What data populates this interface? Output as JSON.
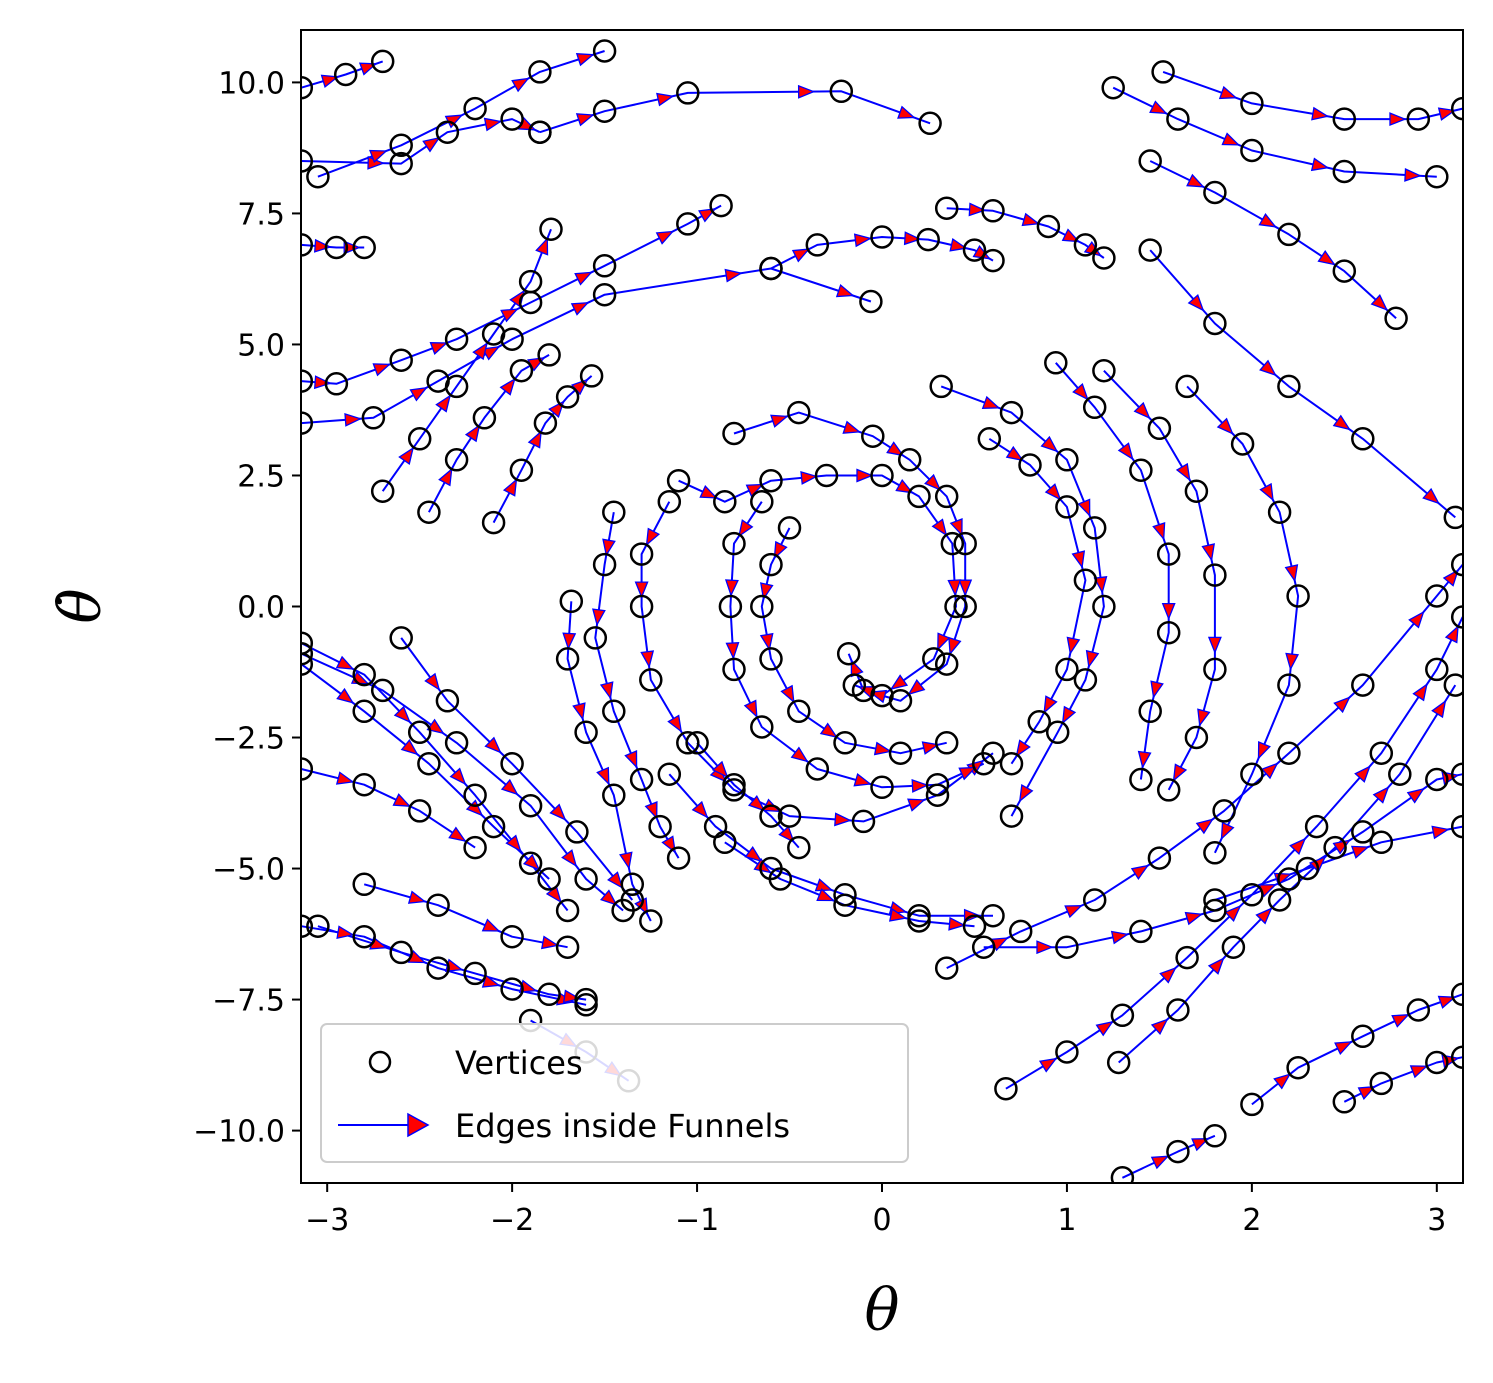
{
  "chart_data": {
    "type": "scatter",
    "title": "",
    "xlabel": "θ",
    "ylabel": "θ̇",
    "xlim": [
      -3.1416,
      3.1416
    ],
    "ylim": [
      -11.0,
      11.0
    ],
    "x_ticks": [
      -3,
      -2,
      -1,
      0,
      1,
      2,
      3
    ],
    "x_tick_labels": [
      "−3",
      "−2",
      "−1",
      "0",
      "1",
      "2",
      "3"
    ],
    "y_ticks": [
      10.0,
      7.5,
      5.0,
      2.5,
      0.0,
      -2.5,
      -5.0,
      -7.5,
      -10.0
    ],
    "y_tick_labels": [
      "10.0",
      "7.5",
      "5.0",
      "2.5",
      "0.0",
      "−2.5",
      "−5.0",
      "−7.5",
      "−10.0"
    ],
    "grid": false,
    "legend_position": "lower-left",
    "colors": {
      "vertices": "#000000",
      "edges": "#0000ff",
      "arrow_fill": "#ff0000"
    },
    "series": [
      {
        "name": "Vertices",
        "marker": "open-circle"
      },
      {
        "name": "Edges inside Funnels",
        "marker": "line-with-arrow"
      }
    ],
    "trajectories": [
      [
        [
          -3.14,
          9.9
        ],
        [
          -2.9,
          10.15
        ],
        [
          -2.7,
          10.4
        ]
      ],
      [
        [
          -3.14,
          8.5
        ],
        [
          -2.6,
          8.45
        ],
        [
          -2.35,
          9.05
        ],
        [
          -2.0,
          9.3
        ],
        [
          -1.85,
          9.05
        ]
      ],
      [
        [
          -3.05,
          8.2
        ],
        [
          -2.6,
          8.8
        ],
        [
          -2.2,
          9.5
        ],
        [
          -1.85,
          10.2
        ],
        [
          -1.5,
          10.6
        ]
      ],
      [
        [
          -1.85,
          9.05
        ],
        [
          -1.5,
          9.45
        ],
        [
          -1.05,
          9.8
        ],
        [
          -0.22,
          9.83
        ],
        [
          0.26,
          9.22
        ]
      ],
      [
        [
          -3.14,
          6.9
        ],
        [
          -2.95,
          6.85
        ],
        [
          -2.8,
          6.85
        ]
      ],
      [
        [
          -3.14,
          4.3
        ],
        [
          -2.95,
          4.25
        ],
        [
          -2.6,
          4.7
        ],
        [
          -2.3,
          5.1
        ],
        [
          -1.9,
          5.8
        ],
        [
          -1.5,
          6.5
        ],
        [
          -1.05,
          7.3
        ],
        [
          -0.87,
          7.65
        ]
      ],
      [
        [
          -3.14,
          3.5
        ],
        [
          -2.75,
          3.6
        ],
        [
          -2.4,
          4.3
        ],
        [
          -2.0,
          5.1
        ],
        [
          -1.5,
          5.95
        ],
        [
          -0.6,
          6.45
        ],
        [
          -0.06,
          5.82
        ]
      ],
      [
        [
          -2.7,
          2.2
        ],
        [
          -2.5,
          3.2
        ],
        [
          -2.3,
          4.2
        ],
        [
          -2.1,
          5.2
        ],
        [
          -1.9,
          6.2
        ],
        [
          -1.79,
          7.2
        ]
      ],
      [
        [
          -2.45,
          1.8
        ],
        [
          -2.3,
          2.8
        ],
        [
          -2.15,
          3.6
        ],
        [
          -1.95,
          4.5
        ],
        [
          -1.8,
          4.8
        ]
      ],
      [
        [
          -2.1,
          1.6
        ],
        [
          -1.95,
          2.6
        ],
        [
          -1.82,
          3.5
        ],
        [
          -1.7,
          4.0
        ],
        [
          -1.57,
          4.4
        ]
      ],
      [
        [
          -0.6,
          6.45
        ],
        [
          -0.35,
          6.9
        ],
        [
          0.0,
          7.05
        ],
        [
          0.25,
          7.0
        ],
        [
          0.5,
          6.8
        ],
        [
          0.6,
          6.6
        ]
      ],
      [
        [
          0.35,
          7.6
        ],
        [
          0.6,
          7.55
        ],
        [
          0.9,
          7.25
        ],
        [
          1.1,
          6.9
        ],
        [
          1.2,
          6.65
        ]
      ],
      [
        [
          1.25,
          9.9
        ],
        [
          1.6,
          9.3
        ],
        [
          2.0,
          8.7
        ],
        [
          2.5,
          8.3
        ],
        [
          3.0,
          8.2
        ]
      ],
      [
        [
          1.52,
          10.2
        ],
        [
          2.0,
          9.6
        ],
        [
          2.5,
          9.3
        ],
        [
          2.9,
          9.3
        ],
        [
          3.14,
          9.5
        ]
      ],
      [
        [
          1.45,
          8.5
        ],
        [
          1.8,
          7.9
        ],
        [
          2.2,
          7.1
        ],
        [
          2.5,
          6.4
        ],
        [
          2.78,
          5.5
        ]
      ],
      [
        [
          1.45,
          6.8
        ],
        [
          1.8,
          5.4
        ],
        [
          2.2,
          4.2
        ],
        [
          2.6,
          3.2
        ],
        [
          3.1,
          1.7
        ]
      ],
      [
        [
          -0.8,
          3.3
        ],
        [
          -0.45,
          3.7
        ],
        [
          -0.05,
          3.25
        ],
        [
          0.15,
          2.8
        ],
        [
          0.35,
          2.1
        ],
        [
          0.45,
          1.2
        ],
        [
          0.45,
          0.0
        ],
        [
          0.35,
          -1.1
        ],
        [
          0.1,
          -1.8
        ],
        [
          -0.1,
          -1.6
        ],
        [
          -0.18,
          -0.9
        ]
      ],
      [
        [
          -1.1,
          2.4
        ],
        [
          -0.85,
          2.0
        ],
        [
          -0.6,
          2.4
        ],
        [
          -0.3,
          2.5
        ],
        [
          0.0,
          2.5
        ],
        [
          0.2,
          2.1
        ],
        [
          0.38,
          1.2
        ],
        [
          0.4,
          0.0
        ],
        [
          0.28,
          -1.0
        ],
        [
          0.0,
          -1.7
        ],
        [
          -0.15,
          -1.5
        ]
      ],
      [
        [
          -1.15,
          2.0
        ],
        [
          -1.3,
          1.0
        ],
        [
          -1.3,
          0.0
        ],
        [
          -1.25,
          -1.4
        ],
        [
          -1.05,
          -2.6
        ],
        [
          -0.8,
          -3.5
        ],
        [
          -0.5,
          -4.0
        ],
        [
          -0.1,
          -4.1
        ],
        [
          0.3,
          -3.6
        ],
        [
          0.6,
          -2.8
        ]
      ],
      [
        [
          -0.65,
          2.0
        ],
        [
          -0.8,
          1.2
        ],
        [
          -0.82,
          0.0
        ],
        [
          -0.8,
          -1.2
        ],
        [
          -0.65,
          -2.3
        ],
        [
          -0.35,
          -3.1
        ],
        [
          0.0,
          -3.45
        ],
        [
          0.3,
          -3.4
        ],
        [
          0.55,
          -3.0
        ]
      ],
      [
        [
          -0.5,
          1.5
        ],
        [
          -0.6,
          0.8
        ],
        [
          -0.65,
          0.0
        ],
        [
          -0.6,
          -1.0
        ],
        [
          -0.45,
          -2.0
        ],
        [
          -0.2,
          -2.6
        ],
        [
          0.1,
          -2.8
        ],
        [
          0.35,
          -2.6
        ]
      ],
      [
        [
          -1.45,
          1.8
        ],
        [
          -1.5,
          0.8
        ],
        [
          -1.55,
          -0.6
        ],
        [
          -1.45,
          -2.0
        ],
        [
          -1.3,
          -3.3
        ],
        [
          -1.2,
          -4.2
        ],
        [
          -1.1,
          -4.8
        ]
      ],
      [
        [
          -1.68,
          0.1
        ],
        [
          -1.7,
          -1.0
        ],
        [
          -1.6,
          -2.4
        ],
        [
          -1.45,
          -3.6
        ],
        [
          -1.35,
          -5.3
        ],
        [
          -1.25,
          -6.0
        ]
      ],
      [
        [
          -1.0,
          -2.6
        ],
        [
          -0.8,
          -3.4
        ],
        [
          -0.6,
          -4.0
        ],
        [
          -0.45,
          -4.6
        ]
      ],
      [
        [
          -1.15,
          -3.2
        ],
        [
          -0.9,
          -4.2
        ],
        [
          -0.6,
          -5.0
        ],
        [
          -0.2,
          -5.5
        ],
        [
          0.2,
          -5.9
        ],
        [
          0.6,
          -5.9
        ]
      ],
      [
        [
          -0.85,
          -4.5
        ],
        [
          -0.55,
          -5.2
        ],
        [
          -0.2,
          -5.7
        ],
        [
          0.2,
          -6.0
        ],
        [
          0.5,
          -6.1
        ]
      ],
      [
        [
          0.58,
          3.2
        ],
        [
          0.8,
          2.7
        ],
        [
          1.0,
          1.9
        ],
        [
          1.1,
          0.5
        ],
        [
          1.0,
          -1.2
        ],
        [
          0.85,
          -2.2
        ],
        [
          0.7,
          -3.0
        ]
      ],
      [
        [
          0.32,
          4.2
        ],
        [
          0.7,
          3.7
        ],
        [
          1.0,
          2.8
        ],
        [
          1.15,
          1.5
        ],
        [
          1.2,
          0.0
        ],
        [
          1.1,
          -1.4
        ],
        [
          0.95,
          -2.4
        ],
        [
          0.7,
          -4.0
        ]
      ],
      [
        [
          0.94,
          4.65
        ],
        [
          1.15,
          3.8
        ],
        [
          1.4,
          2.6
        ],
        [
          1.55,
          1.0
        ],
        [
          1.55,
          -0.5
        ],
        [
          1.45,
          -2.0
        ],
        [
          1.4,
          -3.3
        ]
      ],
      [
        [
          1.2,
          4.5
        ],
        [
          1.5,
          3.4
        ],
        [
          1.7,
          2.2
        ],
        [
          1.8,
          0.6
        ],
        [
          1.8,
          -1.2
        ],
        [
          1.7,
          -2.5
        ],
        [
          1.55,
          -3.5
        ]
      ],
      [
        [
          1.65,
          4.2
        ],
        [
          1.95,
          3.1
        ],
        [
          2.15,
          1.8
        ],
        [
          2.25,
          0.2
        ],
        [
          2.2,
          -1.5
        ],
        [
          2.0,
          -3.2
        ],
        [
          1.8,
          -4.7
        ]
      ],
      [
        [
          0.35,
          -6.9
        ],
        [
          0.75,
          -6.2
        ],
        [
          1.15,
          -5.6
        ],
        [
          1.5,
          -4.8
        ],
        [
          1.85,
          -3.9
        ],
        [
          2.2,
          -2.8
        ],
        [
          2.6,
          -1.5
        ],
        [
          3.0,
          0.2
        ],
        [
          3.14,
          0.8
        ]
      ],
      [
        [
          0.55,
          -6.5
        ],
        [
          1.0,
          -6.5
        ],
        [
          1.4,
          -6.2
        ],
        [
          1.8,
          -5.8
        ],
        [
          2.2,
          -5.2
        ],
        [
          2.6,
          -4.3
        ],
        [
          3.0,
          -3.3
        ],
        [
          3.14,
          -3.2
        ]
      ],
      [
        [
          0.67,
          -9.2
        ],
        [
          1.0,
          -8.5
        ],
        [
          1.3,
          -7.8
        ],
        [
          1.65,
          -6.7
        ],
        [
          2.0,
          -5.5
        ],
        [
          2.35,
          -4.2
        ],
        [
          2.7,
          -2.8
        ],
        [
          3.0,
          -1.2
        ],
        [
          3.14,
          -0.2
        ]
      ],
      [
        [
          1.28,
          -8.7
        ],
        [
          1.6,
          -7.7
        ],
        [
          1.9,
          -6.5
        ],
        [
          2.15,
          -5.6
        ],
        [
          2.45,
          -4.6
        ],
        [
          2.8,
          -3.2
        ],
        [
          3.1,
          -1.5
        ]
      ],
      [
        [
          2.0,
          -9.5
        ],
        [
          2.25,
          -8.8
        ],
        [
          2.6,
          -8.2
        ],
        [
          2.9,
          -7.7
        ],
        [
          3.14,
          -7.4
        ]
      ],
      [
        [
          2.5,
          -9.45
        ],
        [
          2.7,
          -9.1
        ],
        [
          3.0,
          -8.7
        ],
        [
          3.14,
          -8.6
        ]
      ],
      [
        [
          1.3,
          -10.9
        ],
        [
          1.6,
          -10.4
        ],
        [
          1.8,
          -10.1
        ]
      ],
      [
        [
          1.8,
          -5.6
        ],
        [
          2.3,
          -5.0
        ],
        [
          2.7,
          -4.5
        ],
        [
          3.14,
          -4.2
        ]
      ],
      [
        [
          -3.14,
          -0.7
        ],
        [
          -2.8,
          -1.3
        ],
        [
          -2.5,
          -2.4
        ],
        [
          -2.2,
          -3.6
        ],
        [
          -1.9,
          -4.9
        ],
        [
          -1.7,
          -5.8
        ]
      ],
      [
        [
          -3.14,
          -0.9
        ],
        [
          -2.7,
          -1.6
        ],
        [
          -2.3,
          -2.6
        ],
        [
          -1.9,
          -3.8
        ],
        [
          -1.6,
          -5.2
        ],
        [
          -1.4,
          -5.8
        ]
      ],
      [
        [
          -3.14,
          -1.1
        ],
        [
          -2.8,
          -2.0
        ],
        [
          -2.45,
          -3.0
        ],
        [
          -2.1,
          -4.2
        ],
        [
          -1.8,
          -5.2
        ]
      ],
      [
        [
          -2.6,
          -0.6
        ],
        [
          -2.35,
          -1.8
        ],
        [
          -2.0,
          -3.0
        ],
        [
          -1.65,
          -4.3
        ],
        [
          -1.35,
          -5.6
        ]
      ],
      [
        [
          -3.14,
          -3.1
        ],
        [
          -2.8,
          -3.4
        ],
        [
          -2.5,
          -3.9
        ],
        [
          -2.2,
          -4.6
        ]
      ],
      [
        [
          -2.8,
          -5.3
        ],
        [
          -2.4,
          -5.7
        ],
        [
          -2.0,
          -6.3
        ],
        [
          -1.7,
          -6.5
        ]
      ],
      [
        [
          -3.14,
          -6.1
        ],
        [
          -2.8,
          -6.3
        ],
        [
          -2.4,
          -6.9
        ],
        [
          -2.0,
          -7.3
        ],
        [
          -1.6,
          -7.6
        ]
      ],
      [
        [
          -3.05,
          -6.1
        ],
        [
          -2.6,
          -6.6
        ],
        [
          -2.2,
          -7.0
        ],
        [
          -1.8,
          -7.4
        ],
        [
          -1.6,
          -7.5
        ]
      ],
      [
        [
          -1.9,
          -7.9
        ],
        [
          -1.6,
          -8.5
        ],
        [
          -1.37,
          -9.05
        ]
      ]
    ],
    "legend": {
      "vertices_label": "Vertices",
      "edges_label": "Edges inside Funnels"
    }
  }
}
